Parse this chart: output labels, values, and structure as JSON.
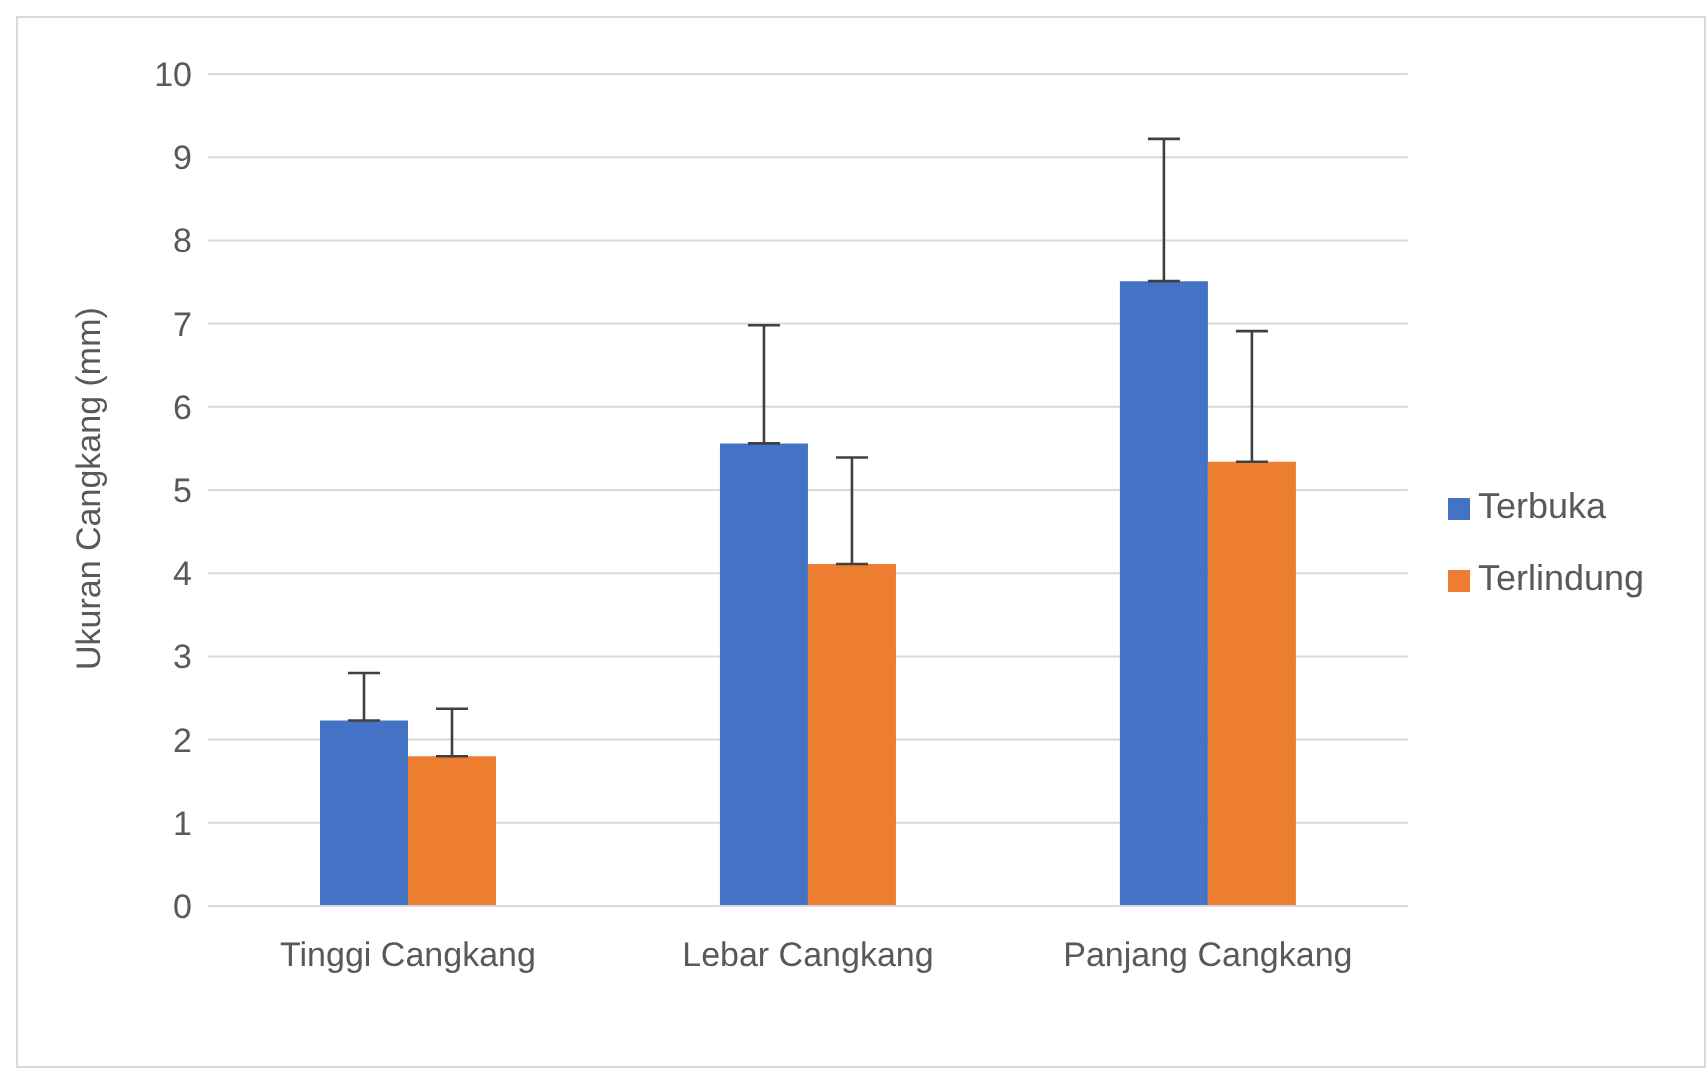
{
  "chart_data": {
    "type": "bar",
    "ylabel": "Ukuran Cangkang (mm)",
    "categories": [
      "Tinggi Cangkang",
      "Lebar Cangkang",
      "Panjang Cangkang"
    ],
    "series": [
      {
        "name": "Terbuka",
        "color": "#4472c4",
        "values": [
          2.23,
          5.56,
          7.51
        ],
        "errors": [
          [
            2.23,
            2.8
          ],
          [
            5.56,
            6.98
          ],
          [
            7.51,
            9.22
          ]
        ]
      },
      {
        "name": "Terlindung",
        "color": "#ed7d31",
        "values": [
          1.8,
          4.11,
          5.34
        ],
        "errors": [
          [
            1.8,
            2.37
          ],
          [
            4.11,
            5.39
          ],
          [
            5.34,
            6.91
          ]
        ]
      }
    ],
    "ylim": [
      0,
      10
    ],
    "yticks": [
      0,
      1,
      2,
      3,
      4,
      5,
      6,
      7,
      8,
      9,
      10
    ],
    "grid": "y",
    "legend": "right"
  }
}
